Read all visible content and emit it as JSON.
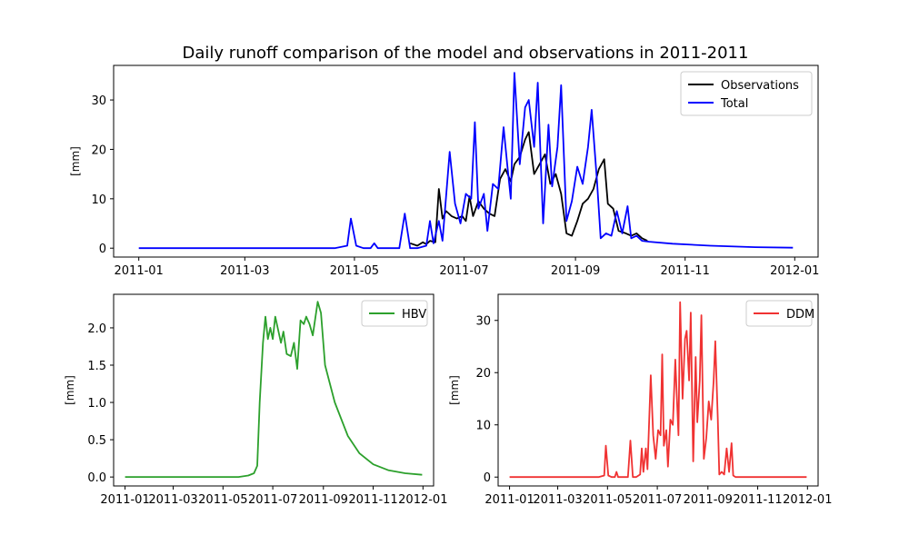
{
  "figure": {
    "title": "Daily runoff comparison of the model and observations in 2011-2011"
  },
  "colors": {
    "observations": "#000000",
    "total": "#0000ff",
    "hbv": "#2ca02c",
    "ddm": "#f03232"
  },
  "chart_data": [
    {
      "type": "line",
      "panel": "top",
      "title": "Daily runoff comparison of the model and observations in 2011-2011",
      "xlabel": "",
      "ylabel": "[mm]",
      "xlim": [
        "2010-12-18",
        "2012-01-14"
      ],
      "ylim": [
        -1.8,
        37
      ],
      "x_ticks": [
        "2011-01",
        "2011-03",
        "2011-05",
        "2011-07",
        "2011-09",
        "2011-11",
        "2012-01"
      ],
      "y_ticks": [
        0,
        10,
        20,
        30
      ],
      "legend": {
        "position": "top-right",
        "entries": [
          "Observations",
          "Total"
        ]
      },
      "series": [
        {
          "name": "Observations",
          "color": "#000000",
          "points": [
            [
              "2011-06-01",
              1.0
            ],
            [
              "2011-06-05",
              0.5
            ],
            [
              "2011-06-08",
              1.2
            ],
            [
              "2011-06-10",
              0.8
            ],
            [
              "2011-06-12",
              1.5
            ],
            [
              "2011-06-15",
              1.2
            ],
            [
              "2011-06-17",
              12.0
            ],
            [
              "2011-06-19",
              6.0
            ],
            [
              "2011-06-21",
              7.5
            ],
            [
              "2011-06-24",
              6.5
            ],
            [
              "2011-06-27",
              6.0
            ],
            [
              "2011-06-30",
              6.5
            ],
            [
              "2011-07-02",
              5.5
            ],
            [
              "2011-07-04",
              10.5
            ],
            [
              "2011-07-06",
              6.5
            ],
            [
              "2011-07-09",
              9.5
            ],
            [
              "2011-07-12",
              8.0
            ],
            [
              "2011-07-15",
              7.0
            ],
            [
              "2011-07-18",
              6.5
            ],
            [
              "2011-07-21",
              14.0
            ],
            [
              "2011-07-24",
              16.0
            ],
            [
              "2011-07-27",
              13.5
            ],
            [
              "2011-07-29",
              17.0
            ],
            [
              "2011-08-01",
              18.5
            ],
            [
              "2011-08-04",
              22.0
            ],
            [
              "2011-08-06",
              23.5
            ],
            [
              "2011-08-09",
              15.0
            ],
            [
              "2011-08-12",
              17.0
            ],
            [
              "2011-08-15",
              19.0
            ],
            [
              "2011-08-18",
              13.0
            ],
            [
              "2011-08-21",
              15.0
            ],
            [
              "2011-08-24",
              11.0
            ],
            [
              "2011-08-27",
              3.0
            ],
            [
              "2011-08-30",
              2.5
            ],
            [
              "2011-09-02",
              5.5
            ],
            [
              "2011-09-05",
              9.0
            ],
            [
              "2011-09-08",
              10.0
            ],
            [
              "2011-09-11",
              12.0
            ],
            [
              "2011-09-14",
              16.0
            ],
            [
              "2011-09-17",
              18.0
            ],
            [
              "2011-09-19",
              9.0
            ],
            [
              "2011-09-22",
              8.0
            ],
            [
              "2011-09-25",
              3.5
            ],
            [
              "2011-09-29",
              3.0
            ],
            [
              "2011-10-02",
              2.5
            ],
            [
              "2011-10-05",
              3.0
            ],
            [
              "2011-10-08",
              2.0
            ],
            [
              "2011-10-11",
              1.5
            ]
          ]
        },
        {
          "name": "Total",
          "color": "#0000ff",
          "points": [
            [
              "2011-01-01",
              0
            ],
            [
              "2011-04-20",
              0
            ],
            [
              "2011-04-27",
              0.5
            ],
            [
              "2011-04-29",
              6.0
            ],
            [
              "2011-05-02",
              0.5
            ],
            [
              "2011-05-06",
              0
            ],
            [
              "2011-05-10",
              0
            ],
            [
              "2011-05-12",
              1.0
            ],
            [
              "2011-05-14",
              0
            ],
            [
              "2011-05-26",
              0
            ],
            [
              "2011-05-29",
              7.0
            ],
            [
              "2011-06-01",
              0
            ],
            [
              "2011-06-05",
              0
            ],
            [
              "2011-06-10",
              0.5
            ],
            [
              "2011-06-12",
              5.5
            ],
            [
              "2011-06-14",
              1.0
            ],
            [
              "2011-06-17",
              5.5
            ],
            [
              "2011-06-19",
              1.5
            ],
            [
              "2011-06-23",
              19.5
            ],
            [
              "2011-06-26",
              9.0
            ],
            [
              "2011-06-29",
              5.0
            ],
            [
              "2011-07-02",
              11.0
            ],
            [
              "2011-07-05",
              10.0
            ],
            [
              "2011-07-07",
              25.5
            ],
            [
              "2011-07-09",
              8.0
            ],
            [
              "2011-07-12",
              11.0
            ],
            [
              "2011-07-14",
              3.5
            ],
            [
              "2011-07-17",
              13.0
            ],
            [
              "2011-07-20",
              12.0
            ],
            [
              "2011-07-23",
              24.5
            ],
            [
              "2011-07-25",
              17.0
            ],
            [
              "2011-07-27",
              10.0
            ],
            [
              "2011-07-29",
              35.5
            ],
            [
              "2011-08-01",
              17.0
            ],
            [
              "2011-08-04",
              28.5
            ],
            [
              "2011-08-06",
              30.0
            ],
            [
              "2011-08-09",
              20.5
            ],
            [
              "2011-08-11",
              33.5
            ],
            [
              "2011-08-14",
              5.0
            ],
            [
              "2011-08-17",
              25.0
            ],
            [
              "2011-08-19",
              12.5
            ],
            [
              "2011-08-22",
              20.5
            ],
            [
              "2011-08-24",
              33.0
            ],
            [
              "2011-08-27",
              5.5
            ],
            [
              "2011-08-30",
              9.5
            ],
            [
              "2011-09-02",
              16.5
            ],
            [
              "2011-09-05",
              13.0
            ],
            [
              "2011-09-08",
              20.5
            ],
            [
              "2011-09-10",
              28.0
            ],
            [
              "2011-09-13",
              13.5
            ],
            [
              "2011-09-15",
              2.0
            ],
            [
              "2011-09-18",
              3.0
            ],
            [
              "2011-09-21",
              2.5
            ],
            [
              "2011-09-24",
              7.5
            ],
            [
              "2011-09-27",
              3.0
            ],
            [
              "2011-09-30",
              8.5
            ],
            [
              "2011-10-02",
              2.0
            ],
            [
              "2011-10-05",
              2.5
            ],
            [
              "2011-10-08",
              1.5
            ],
            [
              "2011-10-12",
              1.3
            ],
            [
              "2011-10-25",
              0.9
            ],
            [
              "2011-11-15",
              0.5
            ],
            [
              "2011-12-10",
              0.2
            ],
            [
              "2011-12-31",
              0.1
            ]
          ]
        }
      ]
    },
    {
      "type": "line",
      "panel": "bottom-left",
      "title": "",
      "xlabel": "",
      "ylabel": "[mm]",
      "xlim": [
        "2010-12-18",
        "2012-01-14"
      ],
      "ylim": [
        -0.12,
        2.45
      ],
      "x_ticks": [
        "2011-01",
        "2011-03",
        "2011-05",
        "2011-07",
        "2011-09",
        "2011-11",
        "2012-01"
      ],
      "y_ticks": [
        "0.0",
        "0.5",
        "1.0",
        "1.5",
        "2.0"
      ],
      "legend": {
        "position": "top-right",
        "entries": [
          "HBV"
        ]
      },
      "series": [
        {
          "name": "HBV",
          "color": "#2ca02c",
          "points": [
            [
              "2011-01-01",
              0
            ],
            [
              "2011-05-20",
              0
            ],
            [
              "2011-06-01",
              0.02
            ],
            [
              "2011-06-08",
              0.05
            ],
            [
              "2011-06-12",
              0.15
            ],
            [
              "2011-06-15",
              1.0
            ],
            [
              "2011-06-19",
              1.8
            ],
            [
              "2011-06-22",
              2.15
            ],
            [
              "2011-06-25",
              1.85
            ],
            [
              "2011-06-28",
              2.0
            ],
            [
              "2011-07-01",
              1.85
            ],
            [
              "2011-07-04",
              2.15
            ],
            [
              "2011-07-08",
              1.95
            ],
            [
              "2011-07-11",
              1.8
            ],
            [
              "2011-07-14",
              1.95
            ],
            [
              "2011-07-18",
              1.65
            ],
            [
              "2011-07-23",
              1.62
            ],
            [
              "2011-07-27",
              1.8
            ],
            [
              "2011-07-31",
              1.45
            ],
            [
              "2011-08-04",
              2.1
            ],
            [
              "2011-08-08",
              2.05
            ],
            [
              "2011-08-11",
              2.15
            ],
            [
              "2011-08-15",
              2.05
            ],
            [
              "2011-08-19",
              1.9
            ],
            [
              "2011-08-25",
              2.35
            ],
            [
              "2011-08-29",
              2.2
            ],
            [
              "2011-09-03",
              1.5
            ],
            [
              "2011-09-15",
              1.0
            ],
            [
              "2011-10-01",
              0.55
            ],
            [
              "2011-10-15",
              0.32
            ],
            [
              "2011-11-01",
              0.17
            ],
            [
              "2011-11-20",
              0.09
            ],
            [
              "2011-12-10",
              0.05
            ],
            [
              "2011-12-31",
              0.03
            ]
          ]
        }
      ]
    },
    {
      "type": "line",
      "panel": "bottom-right",
      "title": "",
      "xlabel": "",
      "ylabel": "[mm]",
      "xlim": [
        "2010-12-18",
        "2012-01-14"
      ],
      "ylim": [
        -1.7,
        35
      ],
      "x_ticks": [
        "2011-01",
        "2011-03",
        "2011-05",
        "2011-07",
        "2011-09",
        "2011-11",
        "2012-01"
      ],
      "y_ticks": [
        0,
        10,
        20,
        30
      ],
      "legend": {
        "position": "top-right",
        "entries": [
          "DDM"
        ]
      },
      "series": [
        {
          "name": "DDM",
          "color": "#f03232",
          "points": [
            [
              "2011-01-01",
              0
            ],
            [
              "2011-04-20",
              0
            ],
            [
              "2011-04-27",
              0.3
            ],
            [
              "2011-04-29",
              6.0
            ],
            [
              "2011-05-02",
              0.3
            ],
            [
              "2011-05-06",
              0
            ],
            [
              "2011-05-10",
              0
            ],
            [
              "2011-05-12",
              1.0
            ],
            [
              "2011-05-14",
              0
            ],
            [
              "2011-05-26",
              0
            ],
            [
              "2011-05-29",
              7.0
            ],
            [
              "2011-06-01",
              0
            ],
            [
              "2011-06-05",
              0
            ],
            [
              "2011-06-10",
              0.5
            ],
            [
              "2011-06-12",
              5.5
            ],
            [
              "2011-06-14",
              1.0
            ],
            [
              "2011-06-17",
              5.5
            ],
            [
              "2011-06-19",
              1.5
            ],
            [
              "2011-06-23",
              19.5
            ],
            [
              "2011-06-26",
              8.0
            ],
            [
              "2011-06-29",
              3.5
            ],
            [
              "2011-07-02",
              9.0
            ],
            [
              "2011-07-05",
              8.0
            ],
            [
              "2011-07-07",
              23.5
            ],
            [
              "2011-07-09",
              6.0
            ],
            [
              "2011-07-12",
              9.0
            ],
            [
              "2011-07-14",
              2.0
            ],
            [
              "2011-07-17",
              11.0
            ],
            [
              "2011-07-20",
              10.0
            ],
            [
              "2011-07-23",
              22.5
            ],
            [
              "2011-07-25",
              15.0
            ],
            [
              "2011-07-27",
              8.0
            ],
            [
              "2011-07-29",
              33.5
            ],
            [
              "2011-08-01",
              15.0
            ],
            [
              "2011-08-04",
              26.5
            ],
            [
              "2011-08-06",
              28.0
            ],
            [
              "2011-08-09",
              18.5
            ],
            [
              "2011-08-11",
              31.5
            ],
            [
              "2011-08-14",
              3.0
            ],
            [
              "2011-08-17",
              23.0
            ],
            [
              "2011-08-19",
              10.5
            ],
            [
              "2011-08-22",
              18.5
            ],
            [
              "2011-08-24",
              31.0
            ],
            [
              "2011-08-27",
              3.5
            ],
            [
              "2011-08-30",
              7.5
            ],
            [
              "2011-09-02",
              14.5
            ],
            [
              "2011-09-05",
              11.0
            ],
            [
              "2011-09-08",
              18.5
            ],
            [
              "2011-09-10",
              26.0
            ],
            [
              "2011-09-13",
              11.5
            ],
            [
              "2011-09-15",
              0.5
            ],
            [
              "2011-09-18",
              1.0
            ],
            [
              "2011-09-21",
              0.5
            ],
            [
              "2011-09-24",
              5.5
            ],
            [
              "2011-09-27",
              1.0
            ],
            [
              "2011-09-30",
              6.5
            ],
            [
              "2011-10-02",
              0.3
            ],
            [
              "2011-10-05",
              0
            ],
            [
              "2011-12-31",
              0
            ]
          ]
        }
      ]
    }
  ]
}
